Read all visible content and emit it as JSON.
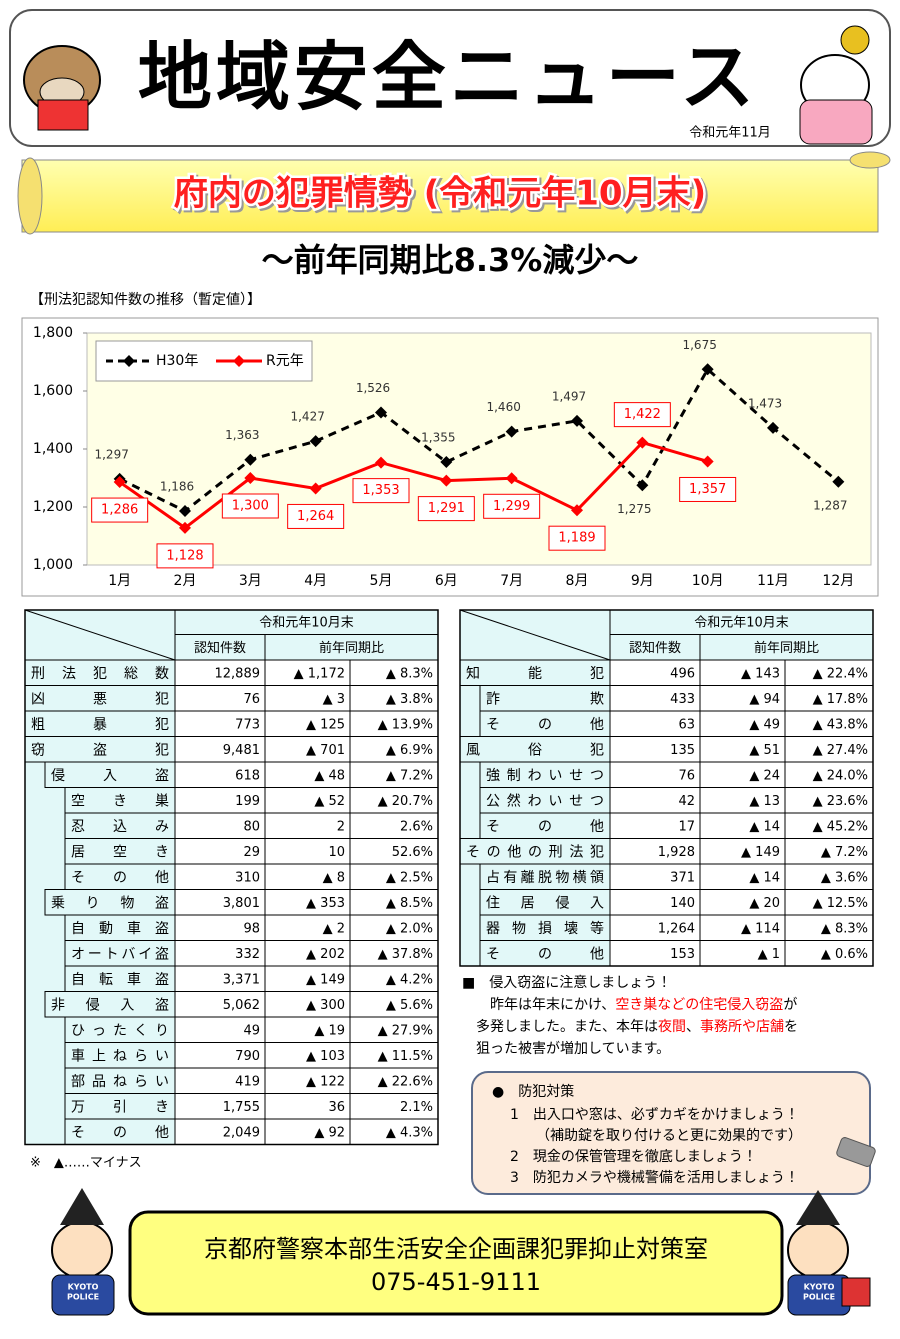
{
  "header": {
    "title": "地域安全ニュース",
    "date": "令和元年11月"
  },
  "banner": {
    "title": "府内の犯罪情勢 (令和元年10月末)",
    "subtitle": "〜前年同期比8.3%減少〜"
  },
  "chart_label": "【刑法犯認知件数の推移（暫定値）】",
  "chart_data": {
    "type": "line",
    "categories": [
      "1月",
      "2月",
      "3月",
      "4月",
      "5月",
      "6月",
      "7月",
      "8月",
      "9月",
      "10月",
      "11月",
      "12月"
    ],
    "series": [
      {
        "name": "H30年",
        "color": "#000000",
        "dashed": true,
        "values": [
          1297,
          1186,
          1363,
          1427,
          1526,
          1355,
          1460,
          1497,
          1275,
          1675,
          1473,
          1287
        ],
        "value_labels": [
          "1,297",
          "1,186",
          "1,363",
          "1,427",
          "1,526",
          "1,355",
          "1,460",
          "1,497",
          "1,275",
          "1,675",
          "1,473",
          "1,287"
        ]
      },
      {
        "name": "R元年",
        "color": "#ff0000",
        "dashed": false,
        "values": [
          1286,
          1128,
          1300,
          1264,
          1353,
          1291,
          1299,
          1189,
          1422,
          1357,
          null,
          null
        ],
        "value_labels": [
          "1,286",
          "1,128",
          "1,300",
          "1,264",
          "1,353",
          "1,291",
          "1,299",
          "1,189",
          "1,422",
          "1,357",
          null,
          null
        ]
      }
    ],
    "ylim": [
      1000,
      1800
    ],
    "yticks": [
      {
        "value": 1000,
        "label": "1,000"
      },
      {
        "value": 1200,
        "label": "1,200"
      },
      {
        "value": 1400,
        "label": "1,400"
      },
      {
        "value": 1600,
        "label": "1,600"
      },
      {
        "value": 1800,
        "label": "1,800"
      }
    ],
    "legend": "upper left"
  },
  "table_header": {
    "period": "令和元年10月末",
    "count": "認知件数",
    "compare": "前年同期比"
  },
  "left_table": {
    "rows": [
      {
        "name": "刑法犯総数",
        "level": 0,
        "count": "12,889",
        "diff": "▲ 1,172",
        "pct": "▲ 8.3%"
      },
      {
        "name": "凶悪犯",
        "level": 0,
        "count": "76",
        "diff": "▲ 3",
        "pct": "▲ 3.8%"
      },
      {
        "name": "粗暴犯",
        "level": 0,
        "count": "773",
        "diff": "▲ 125",
        "pct": "▲ 13.9%"
      },
      {
        "name": "窃盗犯",
        "level": 0,
        "count": "9,481",
        "diff": "▲ 701",
        "pct": "▲ 6.9%"
      },
      {
        "name": "侵入盗",
        "level": 1,
        "count": "618",
        "diff": "▲ 48",
        "pct": "▲ 7.2%"
      },
      {
        "name": "空き巣",
        "level": 2,
        "count": "199",
        "diff": "▲ 52",
        "pct": "▲ 20.7%"
      },
      {
        "name": "忍込み",
        "level": 2,
        "count": "80",
        "diff": "2",
        "pct": "2.6%"
      },
      {
        "name": "居空き",
        "level": 2,
        "count": "29",
        "diff": "10",
        "pct": "52.6%"
      },
      {
        "name": "その他",
        "level": 2,
        "count": "310",
        "diff": "▲ 8",
        "pct": "▲ 2.5%"
      },
      {
        "name": "乗り物盗",
        "level": 1,
        "count": "3,801",
        "diff": "▲ 353",
        "pct": "▲ 8.5%"
      },
      {
        "name": "自動車盗",
        "level": 2,
        "count": "98",
        "diff": "▲ 2",
        "pct": "▲ 2.0%"
      },
      {
        "name": "オートバイ盗",
        "level": 2,
        "count": "332",
        "diff": "▲ 202",
        "pct": "▲ 37.8%"
      },
      {
        "name": "自転車盗",
        "level": 2,
        "count": "3,371",
        "diff": "▲ 149",
        "pct": "▲ 4.2%"
      },
      {
        "name": "非侵入盗",
        "level": 1,
        "count": "5,062",
        "diff": "▲ 300",
        "pct": "▲ 5.6%"
      },
      {
        "name": "ひったくり",
        "level": 2,
        "count": "49",
        "diff": "▲ 19",
        "pct": "▲ 27.9%"
      },
      {
        "name": "車上ねらい",
        "level": 2,
        "count": "790",
        "diff": "▲ 103",
        "pct": "▲ 11.5%"
      },
      {
        "name": "部品ねらい",
        "level": 2,
        "count": "419",
        "diff": "▲ 122",
        "pct": "▲ 22.6%"
      },
      {
        "name": "万引き",
        "level": 2,
        "count": "1,755",
        "diff": "36",
        "pct": "2.1%"
      },
      {
        "name": "その他",
        "level": 2,
        "count": "2,049",
        "diff": "▲ 92",
        "pct": "▲ 4.3%"
      }
    ]
  },
  "right_table": {
    "rows": [
      {
        "name": "知能犯",
        "level": 0,
        "count": "496",
        "diff": "▲ 143",
        "pct": "▲ 22.4%"
      },
      {
        "name": "詐欺",
        "level": 1,
        "count": "433",
        "diff": "▲ 94",
        "pct": "▲ 17.8%"
      },
      {
        "name": "その他",
        "level": 1,
        "count": "63",
        "diff": "▲ 49",
        "pct": "▲ 43.8%"
      },
      {
        "name": "風俗犯",
        "level": 0,
        "count": "135",
        "diff": "▲ 51",
        "pct": "▲ 27.4%"
      },
      {
        "name": "強制わいせつ",
        "level": 1,
        "count": "76",
        "diff": "▲ 24",
        "pct": "▲ 24.0%"
      },
      {
        "name": "公然わいせつ",
        "level": 1,
        "count": "42",
        "diff": "▲ 13",
        "pct": "▲ 23.6%"
      },
      {
        "name": "その他",
        "level": 1,
        "count": "17",
        "diff": "▲ 14",
        "pct": "▲ 45.2%"
      },
      {
        "name": "その他の刑法犯",
        "level": 0,
        "count": "1,928",
        "diff": "▲ 149",
        "pct": "▲ 7.2%"
      },
      {
        "name": "占有離脱物横領",
        "level": 1,
        "count": "371",
        "diff": "▲ 14",
        "pct": "▲ 3.6%"
      },
      {
        "name": "住居侵入",
        "level": 1,
        "count": "140",
        "diff": "▲ 20",
        "pct": "▲ 12.5%"
      },
      {
        "name": "器物損壊等",
        "level": 1,
        "count": "1,264",
        "diff": "▲ 114",
        "pct": "▲ 8.3%"
      },
      {
        "name": "その他",
        "level": 1,
        "count": "153",
        "diff": "▲ 1",
        "pct": "▲ 0.6%"
      }
    ]
  },
  "table_note": "※　▲……マイナス",
  "notice": {
    "heading": "■　侵入窃盗に注意しましょう！",
    "lines": [
      [
        {
          "text": "　昨年は年末にかけ、",
          "em": false
        },
        {
          "text": "空き巣などの住宅侵入窃盗",
          "em": true
        },
        {
          "text": "が",
          "em": false
        }
      ],
      [
        {
          "text": "多発しました。また、本年は",
          "em": false
        },
        {
          "text": "夜間",
          "em": true
        },
        {
          "text": "、",
          "em": false
        },
        {
          "text": "事務所や店舗",
          "em": true
        },
        {
          "text": "を",
          "em": false
        }
      ],
      [
        {
          "text": "狙った被害が増加しています。",
          "em": false
        }
      ]
    ]
  },
  "measures": {
    "heading": "●　防犯対策",
    "items": [
      "1　出入口や窓は、必ずカギをかけましょう！",
      "（補助錠を取り付けると更に効果的です）",
      "2　現金の保管管理を徹底しましょう！",
      "3　防犯カメラや機械警備を活用しましょう！"
    ]
  },
  "footer": {
    "office": "京都府警察本部生活安全企画課犯罪抑止対策室",
    "phone": "075-451-9111"
  },
  "mascot_badge": [
    "KYOTO",
    "POLICE"
  ]
}
